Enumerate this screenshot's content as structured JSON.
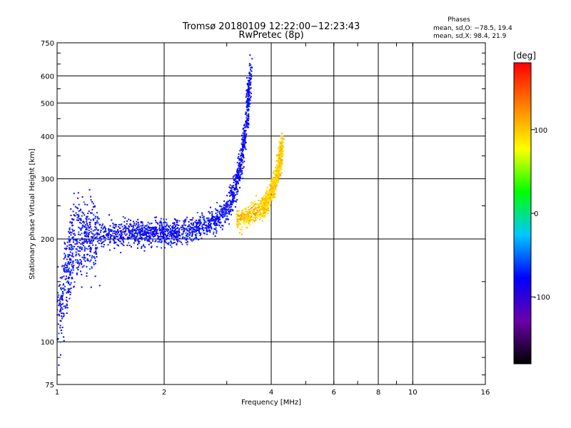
{
  "chart_data": {
    "type": "scatter",
    "title": "Tromsø 20180109 12:22:00−12:23:43",
    "subtitle": "RwPretec (8p)",
    "xlabel": "Frequency [MHz]",
    "ylabel": "Stationary phase Virtual Height [km]",
    "x_scale": "log",
    "y_scale": "log",
    "xlim": [
      1,
      16
    ],
    "ylim": [
      75,
      750
    ],
    "x_ticks": [
      1,
      2,
      4,
      6,
      8,
      10,
      16
    ],
    "y_ticks": [
      75,
      100,
      200,
      300,
      400,
      500,
      600,
      750
    ],
    "grid": true,
    "phase_box": {
      "title": "Phases",
      "line1": "mean, sd,O: −78.5, 19.4",
      "line2": "mean, sd,X:  98.4, 21.9"
    },
    "colorbar": {
      "label": "[deg]",
      "range": [
        -180,
        180
      ],
      "ticks": [
        -100,
        0,
        100
      ],
      "colormap": "rainbow",
      "colors": [
        "#000000",
        "#6a00a8",
        "#0000ff",
        "#00c8ff",
        "#00ff00",
        "#ffff00",
        "#ff8000",
        "#ff0000"
      ]
    },
    "series": [
      {
        "name": "O",
        "phase_mean": -78.5,
        "phase_sd": 19.4,
        "x": [
          1.0,
          1.02,
          1.05,
          1.08,
          1.1,
          1.15,
          1.2,
          1.25,
          1.3,
          1.4,
          1.5,
          1.6,
          1.7,
          1.8,
          1.9,
          2.0,
          2.1,
          2.2,
          2.4,
          2.6,
          2.8,
          3.0,
          3.1,
          3.2,
          3.3,
          3.4,
          3.45,
          3.5
        ],
        "y": [
          112,
          125,
          150,
          170,
          190,
          200,
          203,
          204,
          205,
          206,
          207,
          208,
          208,
          209,
          210,
          210,
          211,
          212,
          215,
          220,
          228,
          240,
          260,
          290,
          340,
          420,
          520,
          620
        ]
      },
      {
        "name": "X",
        "phase_mean": 98.4,
        "phase_sd": 21.9,
        "x": [
          3.2,
          3.4,
          3.6,
          3.8,
          3.9,
          4.0,
          4.1,
          4.2,
          4.25,
          4.3
        ],
        "y": [
          230,
          232,
          238,
          248,
          258,
          272,
          292,
          320,
          350,
          390
        ]
      }
    ]
  }
}
